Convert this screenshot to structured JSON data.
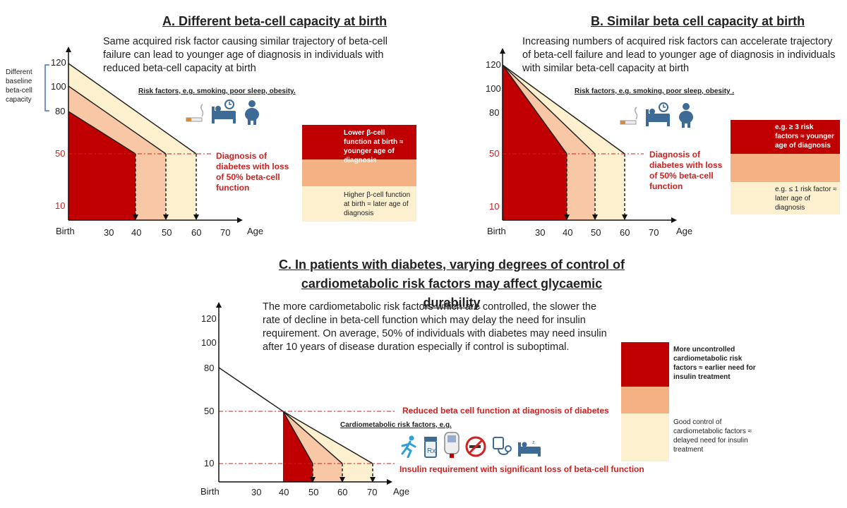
{
  "panel_a": {
    "title": "A. Different beta-cell capacity at birth",
    "description": "Same acquired risk factor causing similar trajectory of beta-cell failure can lead to younger age of diagnosis in individuals with reduced beta-cell capacity at birth",
    "side_note": "Different baseline beta-cell capacity",
    "risk_label": "Risk factors, e.g. smoking, poor sleep, obesity.",
    "diagnosis_note": "Diagnosis of diabetes with loss of 50% beta-cell function",
    "y_ticks": [
      "120",
      "100",
      "80",
      "50",
      "10"
    ],
    "x_ticks": [
      "Birth",
      "30",
      "40",
      "50",
      "60",
      "70",
      "Age"
    ],
    "legend": [
      {
        "text": "Lower β-cell function at birth ≈ younger age of diagnosis",
        "color": "#c00000"
      },
      {
        "text": "",
        "color": "#f4b183"
      },
      {
        "text": "Higher β-cell function at birth ≈ later age of diagnosis",
        "color": "#fdf0cf"
      }
    ],
    "icons": [
      "cigarette-icon",
      "bed-clock-icon",
      "person-icon"
    ]
  },
  "panel_b": {
    "title": "B. Similar beta cell capacity at birth",
    "description": "Increasing numbers of acquired risk factors can accelerate trajectory of beta-cell failure and lead to younger age of diagnosis in individuals with similar beta-cell capacity at birth",
    "risk_label": "Risk factors, e.g. smoking, poor sleep, obesity .",
    "diagnosis_note": "Diagnosis of diabetes with loss of 50% beta-cell function",
    "y_ticks": [
      "120",
      "100",
      "80",
      "50",
      "10"
    ],
    "x_ticks": [
      "Birth",
      "30",
      "40",
      "50",
      "60",
      "70",
      "Age"
    ],
    "legend": [
      {
        "text": "e.g. ≥ 3 risk factors ≈ younger age of diagnosis",
        "color": "#c00000"
      },
      {
        "text": "",
        "color": "#f4b183"
      },
      {
        "text": "e.g. ≤ 1 risk factor ≈ later age of diagnosis",
        "color": "#fdf0cf"
      }
    ],
    "icons": [
      "cigarette-icon",
      "bed-clock-icon",
      "person-icon"
    ]
  },
  "panel_c": {
    "title": "C. In patients with diabetes, varying degrees of control of cardiometabolic risk factors may affect glycaemic durability",
    "description": "The more cardiometabolic risk factors which are controlled, the slower the rate of decline in beta-cell function which may delay the need for insulin requirement. On average, 50% of individuals with diabetes may need insulin after 10 years of disease duration especially if control is suboptimal.",
    "risk_label": "Cardiometabolic risk factors, e.g.",
    "line_50_label": "Reduced beta cell function at diagnosis of diabetes",
    "line_10_label": "Insulin requirement with significant loss of beta-cell function",
    "y_ticks": [
      "120",
      "100",
      "80",
      "50",
      "10"
    ],
    "x_ticks": [
      "Birth",
      "30",
      "40",
      "50",
      "60",
      "70",
      "Age"
    ],
    "legend": [
      {
        "text": "More uncontrolled cardiometabolic risk factors ≈ earlier need for insulin treatment",
        "color": "#c00000"
      },
      {
        "text": "",
        "color": "#f4b183"
      },
      {
        "text": "Good control of cardiometabolic factors ≈ delayed need for insulin treatment",
        "color": "#fdf0cf"
      }
    ],
    "icons": [
      "running-person-icon",
      "prescription-bottle-icon",
      "glucose-meter-icon",
      "no-smoking-icon",
      "blood-pressure-icon",
      "bed-icon"
    ]
  }
}
